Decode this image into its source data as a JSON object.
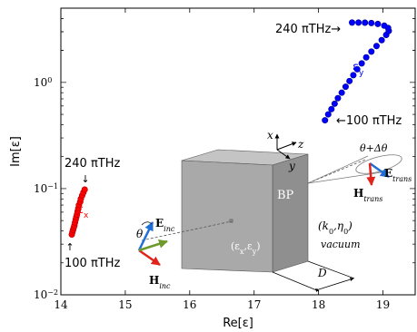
{
  "chart_data": {
    "type": "scatter",
    "xlabel": "Re[ε]",
    "ylabel": "Im[ε]",
    "xlim": [
      14,
      19.5
    ],
    "ylim": [
      0.01,
      5
    ],
    "y_scale": "log",
    "grid": false,
    "x_ticks": [
      14,
      15,
      16,
      17,
      18,
      19
    ],
    "x_tick_labels": [
      "14",
      "15",
      "16",
      "17",
      "18",
      "19"
    ],
    "y_ticks": [
      0.01,
      0.1,
      1
    ],
    "y_tick_labels": [
      "10",
      "10",
      "10"
    ],
    "y_tick_exponents": [
      "−2",
      "−1",
      "0"
    ],
    "series": [
      {
        "name": "ε_x",
        "color": "#ff0000",
        "points": [
          {
            "x": 14.17,
            "y": 0.037
          },
          {
            "x": 14.18,
            "y": 0.039
          },
          {
            "x": 14.19,
            "y": 0.041
          },
          {
            "x": 14.2,
            "y": 0.043
          },
          {
            "x": 14.21,
            "y": 0.045
          },
          {
            "x": 14.22,
            "y": 0.048
          },
          {
            "x": 14.23,
            "y": 0.051
          },
          {
            "x": 14.24,
            "y": 0.054
          },
          {
            "x": 14.25,
            "y": 0.057
          },
          {
            "x": 14.26,
            "y": 0.061
          },
          {
            "x": 14.27,
            "y": 0.065
          },
          {
            "x": 14.28,
            "y": 0.07
          },
          {
            "x": 14.3,
            "y": 0.075
          },
          {
            "x": 14.31,
            "y": 0.08
          },
          {
            "x": 14.33,
            "y": 0.086
          },
          {
            "x": 14.35,
            "y": 0.092
          },
          {
            "x": 14.37,
            "y": 0.098
          }
        ]
      },
      {
        "name": "ε_y",
        "color": "#0000ff",
        "points": [
          {
            "x": 18.1,
            "y": 0.44
          },
          {
            "x": 18.15,
            "y": 0.5
          },
          {
            "x": 18.2,
            "y": 0.56
          },
          {
            "x": 18.25,
            "y": 0.63
          },
          {
            "x": 18.3,
            "y": 0.71
          },
          {
            "x": 18.36,
            "y": 0.8
          },
          {
            "x": 18.42,
            "y": 0.91
          },
          {
            "x": 18.48,
            "y": 1.03
          },
          {
            "x": 18.54,
            "y": 1.17
          },
          {
            "x": 18.6,
            "y": 1.33
          },
          {
            "x": 18.67,
            "y": 1.51
          },
          {
            "x": 18.74,
            "y": 1.72
          },
          {
            "x": 18.82,
            "y": 1.95
          },
          {
            "x": 18.9,
            "y": 2.2
          },
          {
            "x": 18.98,
            "y": 2.5
          },
          {
            "x": 19.05,
            "y": 2.8
          },
          {
            "x": 19.09,
            "y": 3.05
          },
          {
            "x": 19.08,
            "y": 3.25
          },
          {
            "x": 19.02,
            "y": 3.42
          },
          {
            "x": 18.92,
            "y": 3.55
          },
          {
            "x": 18.82,
            "y": 3.62
          },
          {
            "x": 18.72,
            "y": 3.65
          },
          {
            "x": 18.62,
            "y": 3.66
          },
          {
            "x": 18.52,
            "y": 3.66
          }
        ]
      }
    ],
    "annotations": {
      "ex_label_main": "ε",
      "ex_label_sub": "x",
      "ey_label_main": "ε",
      "ey_label_sub": "y",
      "ex_top_freq": "240 πTHz",
      "ex_bottom_freq": "100 πTHz",
      "ey_top_freq": "240 πTHz→",
      "ey_bottom_freq": "←100 πTHz",
      "arrow_up": "↑",
      "arrow_down": "↓"
    }
  },
  "inset": {
    "axis_x": "x",
    "axis_y": "y",
    "axis_z": "z",
    "bp_label": "BP",
    "eps_label": "(εx,εy)",
    "medium_label": "(k0,η0)",
    "vacuum_label": "vacuum",
    "thickness_label": "D",
    "theta_label": "θ",
    "theta_out_label": "θ+Δθ",
    "e_inc_main": "E",
    "e_inc_sub": "inc",
    "h_inc_main": "H",
    "h_inc_sub": "inc",
    "e_trans_main": "E",
    "e_trans_sub": "trans",
    "h_trans_main": "H",
    "h_trans_sub": "trans",
    "colors": {
      "slab_front": "#a9a9a9",
      "slab_top": "#c4c4c4",
      "slab_side": "#8f8f8f",
      "e_vector": "#1f6fd6",
      "h_vector": "#e0241b",
      "k_vector": "#6d9a2b"
    }
  }
}
